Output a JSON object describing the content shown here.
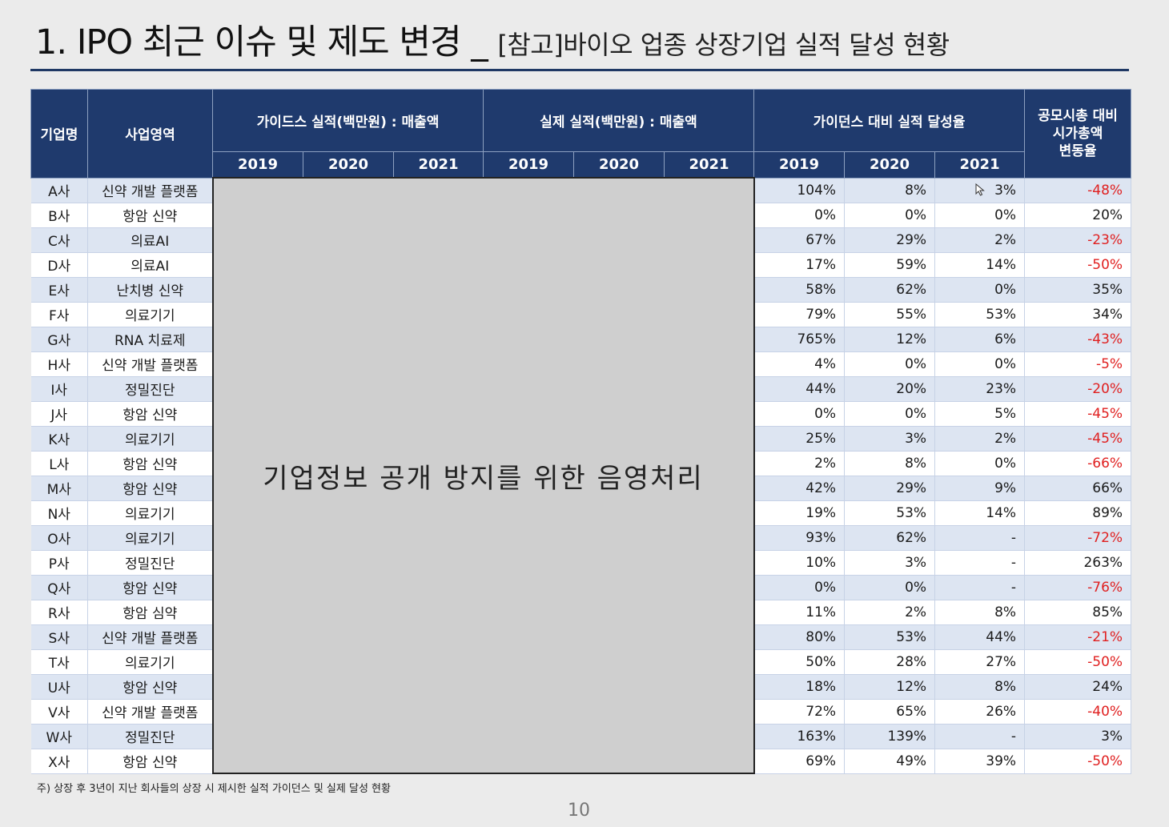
{
  "title": {
    "main": "1. IPO 최근 이슈 및 제도 변경 _ ",
    "sub": "[참고]바이오 업종 상장기업 실적 달성 현황"
  },
  "table": {
    "headers": {
      "company": "기업명",
      "business": "사업영역",
      "guidance": "가이드스 실적(백만원) : 매출액",
      "actual": "실제 실적(백만원) : 매출액",
      "achievement": "가이던스 대비 실적 달성율",
      "mcap_line1": "공모시총 대비",
      "mcap_line2": "시가총액",
      "mcap_line3": "변동율",
      "years": [
        "2019",
        "2020",
        "2021"
      ]
    },
    "mask_text": "기업정보 공개 방지를 위한 음영처리",
    "rows": [
      {
        "company": "A사",
        "business": "신약 개발 플랫폼",
        "r2019": "104%",
        "r2020": "8%",
        "r2021": "3%",
        "mcap": "-48%"
      },
      {
        "company": "B사",
        "business": "항암 신약",
        "r2019": "0%",
        "r2020": "0%",
        "r2021": "0%",
        "mcap": "20%"
      },
      {
        "company": "C사",
        "business": "의료AI",
        "r2019": "67%",
        "r2020": "29%",
        "r2021": "2%",
        "mcap": "-23%"
      },
      {
        "company": "D사",
        "business": "의료AI",
        "r2019": "17%",
        "r2020": "59%",
        "r2021": "14%",
        "mcap": "-50%"
      },
      {
        "company": "E사",
        "business": "난치병 신약",
        "r2019": "58%",
        "r2020": "62%",
        "r2021": "0%",
        "mcap": "35%"
      },
      {
        "company": "F사",
        "business": "의료기기",
        "r2019": "79%",
        "r2020": "55%",
        "r2021": "53%",
        "mcap": "34%"
      },
      {
        "company": "G사",
        "business": "RNA 치료제",
        "r2019": "765%",
        "r2020": "12%",
        "r2021": "6%",
        "mcap": "-43%"
      },
      {
        "company": "H사",
        "business": "신약 개발 플랫폼",
        "r2019": "4%",
        "r2020": "0%",
        "r2021": "0%",
        "mcap": "-5%"
      },
      {
        "company": "I사",
        "business": "정밀진단",
        "r2019": "44%",
        "r2020": "20%",
        "r2021": "23%",
        "mcap": "-20%"
      },
      {
        "company": "J사",
        "business": "항암 신약",
        "r2019": "0%",
        "r2020": "0%",
        "r2021": "5%",
        "mcap": "-45%"
      },
      {
        "company": "K사",
        "business": "의료기기",
        "r2019": "25%",
        "r2020": "3%",
        "r2021": "2%",
        "mcap": "-45%"
      },
      {
        "company": "L사",
        "business": "항암 신약",
        "r2019": "2%",
        "r2020": "8%",
        "r2021": "0%",
        "mcap": "-66%"
      },
      {
        "company": "M사",
        "business": "항암 신약",
        "r2019": "42%",
        "r2020": "29%",
        "r2021": "9%",
        "mcap": "66%"
      },
      {
        "company": "N사",
        "business": "의료기기",
        "r2019": "19%",
        "r2020": "53%",
        "r2021": "14%",
        "mcap": "89%"
      },
      {
        "company": "O사",
        "business": "의료기기",
        "r2019": "93%",
        "r2020": "62%",
        "r2021": "-",
        "mcap": "-72%"
      },
      {
        "company": "P사",
        "business": "정밀진단",
        "r2019": "10%",
        "r2020": "3%",
        "r2021": "-",
        "mcap": "263%"
      },
      {
        "company": "Q사",
        "business": "항암 신약",
        "r2019": "0%",
        "r2020": "0%",
        "r2021": "-",
        "mcap": "-76%"
      },
      {
        "company": "R사",
        "business": "항암 심약",
        "r2019": "11%",
        "r2020": "2%",
        "r2021": "8%",
        "mcap": "85%"
      },
      {
        "company": "S사",
        "business": "신약 개발 플랫폼",
        "r2019": "80%",
        "r2020": "53%",
        "r2021": "44%",
        "mcap": "-21%"
      },
      {
        "company": "T사",
        "business": "의료기기",
        "r2019": "50%",
        "r2020": "28%",
        "r2021": "27%",
        "mcap": "-50%"
      },
      {
        "company": "U사",
        "business": "항암 신약",
        "r2019": "18%",
        "r2020": "12%",
        "r2021": "8%",
        "mcap": "24%"
      },
      {
        "company": "V사",
        "business": "신약 개발 플랫폼",
        "r2019": "72%",
        "r2020": "65%",
        "r2021": "26%",
        "mcap": "-40%"
      },
      {
        "company": "W사",
        "business": "정밀진단",
        "r2019": "163%",
        "r2020": "139%",
        "r2021": "-",
        "mcap": "3%"
      },
      {
        "company": "X사",
        "business": "항암 신약",
        "r2019": "69%",
        "r2020": "49%",
        "r2021": "39%",
        "mcap": "-50%"
      }
    ]
  },
  "colors": {
    "header_bg": "#1f3a6d",
    "row_alt": "#dde5f2",
    "negative": "#e02020"
  },
  "footnote": "주) 상장 후 3년이 지난 회사들의 상장 시 제시한 실적 가이던스 및 실제 달성 현황",
  "page_number": "10"
}
